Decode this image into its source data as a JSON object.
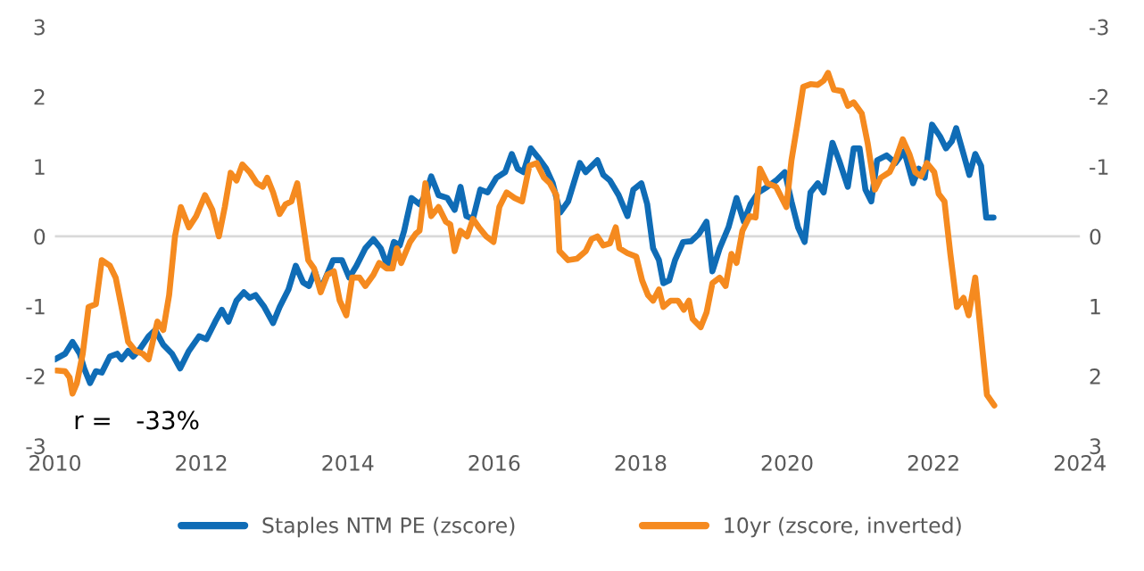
{
  "chart_data": {
    "type": "line",
    "annotations": [
      "r =   -33%"
    ],
    "xlim": [
      2010,
      2024
    ],
    "xticks": [
      2010,
      2012,
      2014,
      2016,
      2018,
      2020,
      2022,
      2024
    ],
    "ylim": [
      -3,
      3
    ],
    "yticks": [
      -3,
      -2,
      -1,
      0,
      1,
      2,
      3
    ],
    "y2lim": [
      3,
      -3
    ],
    "y2ticks": [
      -3,
      -2,
      -1,
      0,
      1,
      2,
      3
    ],
    "grid": false,
    "legend": "bottom",
    "line_style": "solid",
    "marker": "none",
    "ref_lines": [
      {
        "axis": "y",
        "value": 0,
        "color": "#d9d9d9"
      }
    ],
    "series": [
      {
        "name": "Staples NTM PE (zscore)",
        "color": "#0f6cb6",
        "x": [
          2010.0,
          2010.14,
          2010.24,
          2010.34,
          2010.4,
          2010.48,
          2010.56,
          2010.64,
          2010.75,
          2010.85,
          2010.91,
          2011.0,
          2011.07,
          2011.17,
          2011.28,
          2011.37,
          2011.48,
          2011.6,
          2011.71,
          2011.83,
          2011.97,
          2012.07,
          2012.19,
          2012.28,
          2012.37,
          2012.48,
          2012.58,
          2012.66,
          2012.74,
          2012.86,
          2012.98,
          2013.07,
          2013.19,
          2013.29,
          2013.39,
          2013.47,
          2013.55,
          2013.63,
          2013.7,
          2013.8,
          2013.92,
          2014.02,
          2014.12,
          2014.24,
          2014.35,
          2014.45,
          2014.54,
          2014.63,
          2014.71,
          2014.77,
          2014.87,
          2014.98,
          2015.06,
          2015.14,
          2015.24,
          2015.36,
          2015.46,
          2015.54,
          2015.62,
          2015.71,
          2015.81,
          2015.91,
          2016.03,
          2016.15,
          2016.24,
          2016.32,
          2016.4,
          2016.5,
          2016.6,
          2016.71,
          2016.8,
          2016.9,
          2017.01,
          2017.17,
          2017.25,
          2017.41,
          2017.49,
          2017.58,
          2017.7,
          2017.82,
          2017.9,
          2018.01,
          2018.09,
          2018.17,
          2018.25,
          2018.31,
          2018.39,
          2018.47,
          2018.58,
          2018.69,
          2018.8,
          2018.9,
          2018.98,
          2019.08,
          2019.2,
          2019.31,
          2019.41,
          2019.5,
          2019.61,
          2019.73,
          2019.85,
          2019.97,
          2020.06,
          2020.15,
          2020.24,
          2020.32,
          2020.42,
          2020.5,
          2020.62,
          2020.71,
          2020.83,
          2020.91,
          2020.99,
          2021.07,
          2021.15,
          2021.23,
          2021.36,
          2021.48,
          2021.6,
          2021.72,
          2021.8,
          2021.88,
          2021.98,
          2022.09,
          2022.17,
          2022.25,
          2022.31,
          2022.41,
          2022.49,
          2022.57,
          2022.65,
          2022.72,
          2022.82
        ],
        "values": [
          -1.76,
          -1.68,
          -1.51,
          -1.68,
          -1.89,
          -2.1,
          -1.93,
          -1.95,
          -1.72,
          -1.68,
          -1.76,
          -1.64,
          -1.72,
          -1.6,
          -1.43,
          -1.34,
          -1.55,
          -1.68,
          -1.89,
          -1.64,
          -1.43,
          -1.47,
          -1.22,
          -1.05,
          -1.22,
          -0.92,
          -0.8,
          -0.88,
          -0.84,
          -1.01,
          -1.24,
          -1.01,
          -0.76,
          -0.42,
          -0.66,
          -0.71,
          -0.5,
          -0.76,
          -0.59,
          -0.34,
          -0.34,
          -0.59,
          -0.42,
          -0.17,
          -0.04,
          -0.17,
          -0.42,
          -0.08,
          -0.13,
          0.08,
          0.55,
          0.46,
          0.59,
          0.86,
          0.59,
          0.55,
          0.38,
          0.71,
          0.29,
          0.25,
          0.67,
          0.63,
          0.84,
          0.92,
          1.18,
          0.97,
          0.92,
          1.26,
          1.13,
          0.97,
          0.76,
          0.34,
          0.5,
          1.05,
          0.92,
          1.09,
          0.88,
          0.8,
          0.59,
          0.29,
          0.67,
          0.76,
          0.46,
          -0.17,
          -0.34,
          -0.67,
          -0.63,
          -0.34,
          -0.08,
          -0.07,
          0.04,
          0.21,
          -0.5,
          -0.17,
          0.13,
          0.55,
          0.21,
          0.46,
          0.63,
          0.71,
          0.8,
          0.92,
          0.5,
          0.13,
          -0.08,
          0.63,
          0.76,
          0.63,
          1.34,
          1.09,
          0.71,
          1.26,
          1.26,
          0.67,
          0.5,
          1.09,
          1.16,
          1.05,
          1.22,
          0.76,
          0.97,
          0.84,
          1.6,
          1.43,
          1.26,
          1.36,
          1.55,
          1.18,
          0.88,
          1.18,
          1.01,
          0.27,
          0.27
        ]
      },
      {
        "name": "10yr (zscore, inverted)",
        "color": "#f58a1f",
        "axis": "y2",
        "x": [
          2010.02,
          2010.14,
          2010.2,
          2010.24,
          2010.3,
          2010.38,
          2010.46,
          2010.56,
          2010.64,
          2010.75,
          2010.83,
          2010.91,
          2011.0,
          2011.1,
          2011.2,
          2011.28,
          2011.4,
          2011.48,
          2011.56,
          2011.64,
          2011.72,
          2011.83,
          2011.93,
          2012.05,
          2012.15,
          2012.24,
          2012.32,
          2012.4,
          2012.48,
          2012.56,
          2012.66,
          2012.76,
          2012.84,
          2012.9,
          2012.98,
          2013.07,
          2013.15,
          2013.23,
          2013.31,
          2013.39,
          2013.46,
          2013.54,
          2013.63,
          2013.72,
          2013.81,
          2013.89,
          2013.98,
          2014.06,
          2014.16,
          2014.24,
          2014.35,
          2014.43,
          2014.53,
          2014.61,
          2014.67,
          2014.73,
          2014.85,
          2014.93,
          2014.98,
          2015.06,
          2015.14,
          2015.24,
          2015.34,
          2015.4,
          2015.46,
          2015.54,
          2015.63,
          2015.71,
          2015.79,
          2015.89,
          2015.99,
          2016.07,
          2016.17,
          2016.28,
          2016.38,
          2016.48,
          2016.58,
          2016.68,
          2016.76,
          2016.85,
          2016.89,
          2017.01,
          2017.13,
          2017.25,
          2017.33,
          2017.41,
          2017.49,
          2017.58,
          2017.66,
          2017.71,
          2017.82,
          2017.94,
          2018.02,
          2018.1,
          2018.17,
          2018.25,
          2018.31,
          2018.41,
          2018.51,
          2018.59,
          2018.66,
          2018.71,
          2018.82,
          2018.9,
          2018.98,
          2019.08,
          2019.16,
          2019.24,
          2019.31,
          2019.39,
          2019.49,
          2019.57,
          2019.63,
          2019.73,
          2019.85,
          2019.99,
          2020.06,
          2020.14,
          2020.22,
          2020.32,
          2020.42,
          2020.5,
          2020.56,
          2020.64,
          2020.75,
          2020.83,
          2020.91,
          2021.02,
          2021.1,
          2021.2,
          2021.28,
          2021.4,
          2021.48,
          2021.58,
          2021.67,
          2021.75,
          2021.83,
          2021.91,
          2022.01,
          2022.07,
          2022.15,
          2022.23,
          2022.32,
          2022.41,
          2022.48,
          2022.57,
          2022.65,
          2022.73,
          2022.83
        ],
        "values": [
          1.92,
          1.93,
          2.02,
          2.25,
          2.1,
          1.68,
          1.01,
          0.97,
          0.34,
          0.42,
          0.59,
          1.01,
          1.51,
          1.64,
          1.68,
          1.76,
          1.22,
          1.34,
          0.84,
          0.0,
          -0.42,
          -0.13,
          -0.29,
          -0.59,
          -0.38,
          0.0,
          -0.42,
          -0.91,
          -0.8,
          -1.03,
          -0.92,
          -0.76,
          -0.71,
          -0.84,
          -0.63,
          -0.32,
          -0.46,
          -0.5,
          -0.76,
          -0.17,
          0.34,
          0.46,
          0.8,
          0.55,
          0.5,
          0.92,
          1.13,
          0.59,
          0.59,
          0.71,
          0.55,
          0.38,
          0.46,
          0.46,
          0.17,
          0.38,
          0.08,
          -0.04,
          -0.08,
          -0.76,
          -0.29,
          -0.42,
          -0.21,
          -0.17,
          0.21,
          -0.08,
          0.0,
          -0.25,
          -0.13,
          0.0,
          0.08,
          -0.42,
          -0.63,
          -0.55,
          -0.5,
          -1.01,
          -1.05,
          -0.84,
          -0.76,
          -0.59,
          0.21,
          0.34,
          0.32,
          0.21,
          0.04,
          0.0,
          0.13,
          0.1,
          -0.13,
          0.17,
          0.24,
          0.29,
          0.63,
          0.84,
          0.92,
          0.76,
          1.01,
          0.92,
          0.92,
          1.05,
          0.92,
          1.18,
          1.3,
          1.09,
          0.67,
          0.59,
          0.71,
          0.25,
          0.38,
          -0.08,
          -0.29,
          -0.27,
          -0.97,
          -0.76,
          -0.71,
          -0.42,
          -1.09,
          -1.6,
          -2.14,
          -2.18,
          -2.17,
          -2.23,
          -2.34,
          -2.1,
          -2.08,
          -1.87,
          -1.92,
          -1.76,
          -1.34,
          -0.67,
          -0.84,
          -0.92,
          -1.09,
          -1.39,
          -1.18,
          -0.92,
          -0.86,
          -1.05,
          -0.92,
          -0.61,
          -0.5,
          0.25,
          1.01,
          0.88,
          1.13,
          0.59,
          1.43,
          2.27,
          2.42
        ]
      }
    ]
  }
}
